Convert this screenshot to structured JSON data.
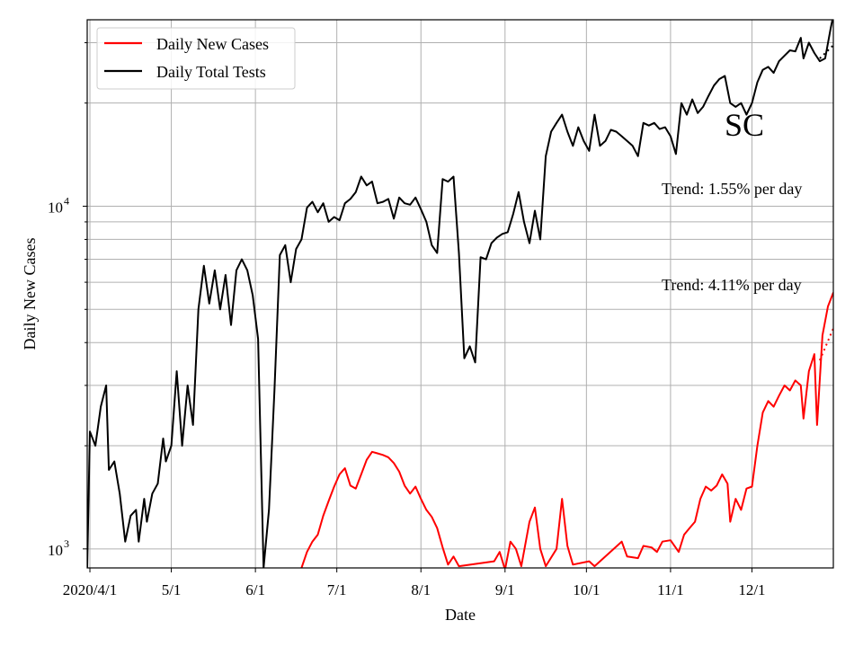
{
  "chart_data": {
    "type": "line",
    "xlabel": "Date",
    "ylabel": "Daily New Cases",
    "yscale": "log",
    "ylim": [
      880,
      35000
    ],
    "x_start": "2020-03-31",
    "x_end": "2020-12-31",
    "x_ticks": [
      {
        "date": "2020-04-01",
        "label": "2020/4/1"
      },
      {
        "date": "2020-05-01",
        "label": "5/1"
      },
      {
        "date": "2020-06-01",
        "label": "6/1"
      },
      {
        "date": "2020-07-01",
        "label": "7/1"
      },
      {
        "date": "2020-08-01",
        "label": "8/1"
      },
      {
        "date": "2020-09-01",
        "label": "9/1"
      },
      {
        "date": "2020-10-01",
        "label": "10/1"
      },
      {
        "date": "2020-11-01",
        "label": "11/1"
      },
      {
        "date": "2020-12-01",
        "label": "12/1"
      }
    ],
    "y_major_ticks": [
      {
        "value": 1000,
        "base": "10",
        "exp": "3"
      },
      {
        "value": 10000,
        "base": "10",
        "exp": "4"
      }
    ],
    "y_minor_ticks": [
      2000,
      3000,
      4000,
      5000,
      6000,
      7000,
      8000,
      9000,
      20000,
      30000
    ],
    "grid": true,
    "legend_position": "upper-left",
    "state_label": "SC",
    "annotations": [
      "Trend: 1.55% per day",
      "Trend: 4.11% per day"
    ],
    "series": [
      {
        "name": "Daily New Cases",
        "color": "#ff0000",
        "points": [
          [
            "2020-06-18",
            880
          ],
          [
            "2020-06-20",
            980
          ],
          [
            "2020-06-22",
            1050
          ],
          [
            "2020-06-24",
            1100
          ],
          [
            "2020-06-26",
            1250
          ],
          [
            "2020-06-28",
            1380
          ],
          [
            "2020-06-30",
            1520
          ],
          [
            "2020-07-02",
            1650
          ],
          [
            "2020-07-04",
            1720
          ],
          [
            "2020-07-06",
            1530
          ],
          [
            "2020-07-08",
            1500
          ],
          [
            "2020-07-10",
            1650
          ],
          [
            "2020-07-12",
            1820
          ],
          [
            "2020-07-14",
            1920
          ],
          [
            "2020-07-16",
            1900
          ],
          [
            "2020-07-18",
            1880
          ],
          [
            "2020-07-20",
            1850
          ],
          [
            "2020-07-22",
            1780
          ],
          [
            "2020-07-24",
            1680
          ],
          [
            "2020-07-26",
            1530
          ],
          [
            "2020-07-28",
            1450
          ],
          [
            "2020-07-30",
            1520
          ],
          [
            "2020-08-01",
            1400
          ],
          [
            "2020-08-03",
            1300
          ],
          [
            "2020-08-05",
            1240
          ],
          [
            "2020-08-07",
            1150
          ],
          [
            "2020-08-09",
            1010
          ],
          [
            "2020-08-11",
            900
          ],
          [
            "2020-08-13",
            950
          ],
          [
            "2020-08-15",
            890
          ],
          [
            "2020-08-28",
            920
          ],
          [
            "2020-08-30",
            980
          ],
          [
            "2020-09-01",
            870
          ],
          [
            "2020-09-03",
            1050
          ],
          [
            "2020-09-05",
            1000
          ],
          [
            "2020-09-07",
            890
          ],
          [
            "2020-09-10",
            1200
          ],
          [
            "2020-09-12",
            1320
          ],
          [
            "2020-09-14",
            1000
          ],
          [
            "2020-09-16",
            890
          ],
          [
            "2020-09-20",
            1000
          ],
          [
            "2020-09-22",
            1400
          ],
          [
            "2020-09-24",
            1020
          ],
          [
            "2020-09-26",
            900
          ],
          [
            "2020-10-02",
            920
          ],
          [
            "2020-10-04",
            890
          ],
          [
            "2020-10-14",
            1050
          ],
          [
            "2020-10-16",
            950
          ],
          [
            "2020-10-20",
            940
          ],
          [
            "2020-10-22",
            1020
          ],
          [
            "2020-10-25",
            1010
          ],
          [
            "2020-10-27",
            980
          ],
          [
            "2020-10-29",
            1050
          ],
          [
            "2020-11-01",
            1060
          ],
          [
            "2020-11-04",
            980
          ],
          [
            "2020-11-06",
            1100
          ],
          [
            "2020-11-08",
            1150
          ],
          [
            "2020-11-10",
            1200
          ],
          [
            "2020-11-12",
            1400
          ],
          [
            "2020-11-14",
            1520
          ],
          [
            "2020-11-16",
            1480
          ],
          [
            "2020-11-18",
            1530
          ],
          [
            "2020-11-20",
            1650
          ],
          [
            "2020-11-22",
            1550
          ],
          [
            "2020-11-23",
            1200
          ],
          [
            "2020-11-25",
            1400
          ],
          [
            "2020-11-27",
            1300
          ],
          [
            "2020-11-29",
            1500
          ],
          [
            "2020-12-01",
            1520
          ],
          [
            "2020-12-03",
            2000
          ],
          [
            "2020-12-05",
            2500
          ],
          [
            "2020-12-07",
            2700
          ],
          [
            "2020-12-09",
            2600
          ],
          [
            "2020-12-11",
            2800
          ],
          [
            "2020-12-13",
            3000
          ],
          [
            "2020-12-15",
            2900
          ],
          [
            "2020-12-17",
            3100
          ],
          [
            "2020-12-19",
            3000
          ],
          [
            "2020-12-20",
            2400
          ],
          [
            "2020-12-22",
            3300
          ],
          [
            "2020-12-24",
            3700
          ],
          [
            "2020-12-25",
            2300
          ],
          [
            "2020-12-27",
            4200
          ],
          [
            "2020-12-29",
            5100
          ],
          [
            "2020-12-31",
            5600
          ]
        ]
      },
      {
        "name": "Daily Total Tests",
        "color": "#000000",
        "points": [
          [
            "2020-03-31",
            880
          ],
          [
            "2020-04-01",
            2200
          ],
          [
            "2020-04-03",
            2000
          ],
          [
            "2020-04-05",
            2600
          ],
          [
            "2020-04-07",
            3000
          ],
          [
            "2020-04-08",
            1700
          ],
          [
            "2020-04-10",
            1800
          ],
          [
            "2020-04-12",
            1450
          ],
          [
            "2020-04-14",
            1050
          ],
          [
            "2020-04-16",
            1250
          ],
          [
            "2020-04-18",
            1300
          ],
          [
            "2020-04-19",
            1050
          ],
          [
            "2020-04-21",
            1400
          ],
          [
            "2020-04-22",
            1200
          ],
          [
            "2020-04-24",
            1450
          ],
          [
            "2020-04-26",
            1550
          ],
          [
            "2020-04-28",
            2100
          ],
          [
            "2020-04-29",
            1800
          ],
          [
            "2020-05-01",
            2000
          ],
          [
            "2020-05-03",
            3300
          ],
          [
            "2020-05-05",
            2000
          ],
          [
            "2020-05-07",
            3000
          ],
          [
            "2020-05-09",
            2300
          ],
          [
            "2020-05-11",
            5000
          ],
          [
            "2020-05-13",
            6700
          ],
          [
            "2020-05-15",
            5200
          ],
          [
            "2020-05-17",
            6500
          ],
          [
            "2020-05-19",
            5000
          ],
          [
            "2020-05-21",
            6300
          ],
          [
            "2020-05-23",
            4500
          ],
          [
            "2020-05-25",
            6500
          ],
          [
            "2020-05-27",
            7000
          ],
          [
            "2020-05-29",
            6500
          ],
          [
            "2020-05-31",
            5500
          ],
          [
            "2020-06-02",
            4100
          ],
          [
            "2020-06-04",
            880
          ],
          [
            "2020-06-06",
            1300
          ],
          [
            "2020-06-08",
            2900
          ],
          [
            "2020-06-10",
            7200
          ],
          [
            "2020-06-12",
            7700
          ],
          [
            "2020-06-14",
            6000
          ],
          [
            "2020-06-16",
            7500
          ],
          [
            "2020-06-18",
            8000
          ],
          [
            "2020-06-20",
            9900
          ],
          [
            "2020-06-22",
            10300
          ],
          [
            "2020-06-24",
            9600
          ],
          [
            "2020-06-26",
            10200
          ],
          [
            "2020-06-28",
            9000
          ],
          [
            "2020-06-30",
            9300
          ],
          [
            "2020-07-02",
            9100
          ],
          [
            "2020-07-04",
            10200
          ],
          [
            "2020-07-06",
            10500
          ],
          [
            "2020-07-08",
            11000
          ],
          [
            "2020-07-10",
            12200
          ],
          [
            "2020-07-12",
            11500
          ],
          [
            "2020-07-14",
            11800
          ],
          [
            "2020-07-16",
            10200
          ],
          [
            "2020-07-18",
            10300
          ],
          [
            "2020-07-20",
            10500
          ],
          [
            "2020-07-22",
            9200
          ],
          [
            "2020-07-24",
            10600
          ],
          [
            "2020-07-26",
            10200
          ],
          [
            "2020-07-28",
            10100
          ],
          [
            "2020-07-30",
            10600
          ],
          [
            "2020-08-01",
            9800
          ],
          [
            "2020-08-03",
            9000
          ],
          [
            "2020-08-05",
            7700
          ],
          [
            "2020-08-07",
            7300
          ],
          [
            "2020-08-09",
            12000
          ],
          [
            "2020-08-11",
            11800
          ],
          [
            "2020-08-13",
            12200
          ],
          [
            "2020-08-15",
            7300
          ],
          [
            "2020-08-17",
            3600
          ],
          [
            "2020-08-19",
            3900
          ],
          [
            "2020-08-21",
            3500
          ],
          [
            "2020-08-23",
            7100
          ],
          [
            "2020-08-25",
            7000
          ],
          [
            "2020-08-27",
            7800
          ],
          [
            "2020-08-29",
            8100
          ],
          [
            "2020-08-31",
            8300
          ],
          [
            "2020-09-02",
            8400
          ],
          [
            "2020-09-04",
            9500
          ],
          [
            "2020-09-06",
            11000
          ],
          [
            "2020-09-08",
            9000
          ],
          [
            "2020-09-10",
            7800
          ],
          [
            "2020-09-12",
            9700
          ],
          [
            "2020-09-14",
            8000
          ],
          [
            "2020-09-16",
            14000
          ],
          [
            "2020-09-18",
            16500
          ],
          [
            "2020-09-20",
            17500
          ],
          [
            "2020-09-22",
            18500
          ],
          [
            "2020-09-24",
            16500
          ],
          [
            "2020-09-26",
            15000
          ],
          [
            "2020-09-28",
            17000
          ],
          [
            "2020-09-30",
            15500
          ],
          [
            "2020-10-02",
            14500
          ],
          [
            "2020-10-04",
            18500
          ],
          [
            "2020-10-06",
            15000
          ],
          [
            "2020-10-08",
            15500
          ],
          [
            "2020-10-10",
            16700
          ],
          [
            "2020-10-12",
            16500
          ],
          [
            "2020-10-14",
            16000
          ],
          [
            "2020-10-16",
            15500
          ],
          [
            "2020-10-18",
            15000
          ],
          [
            "2020-10-20",
            14000
          ],
          [
            "2020-10-22",
            17500
          ],
          [
            "2020-10-24",
            17200
          ],
          [
            "2020-10-26",
            17500
          ],
          [
            "2020-10-28",
            16800
          ],
          [
            "2020-10-30",
            17000
          ],
          [
            "2020-11-01",
            16000
          ],
          [
            "2020-11-03",
            14200
          ],
          [
            "2020-11-05",
            20000
          ],
          [
            "2020-11-07",
            18500
          ],
          [
            "2020-11-09",
            20500
          ],
          [
            "2020-11-11",
            18700
          ],
          [
            "2020-11-13",
            19500
          ],
          [
            "2020-11-15",
            21000
          ],
          [
            "2020-11-17",
            22500
          ],
          [
            "2020-11-19",
            23500
          ],
          [
            "2020-11-21",
            24000
          ],
          [
            "2020-11-23",
            20000
          ],
          [
            "2020-11-25",
            19500
          ],
          [
            "2020-11-27",
            20000
          ],
          [
            "2020-11-29",
            18500
          ],
          [
            "2020-12-01",
            20000
          ],
          [
            "2020-12-03",
            23000
          ],
          [
            "2020-12-05",
            25000
          ],
          [
            "2020-12-07",
            25500
          ],
          [
            "2020-12-09",
            24500
          ],
          [
            "2020-12-11",
            26500
          ],
          [
            "2020-12-13",
            27500
          ],
          [
            "2020-12-15",
            28500
          ],
          [
            "2020-12-17",
            28300
          ],
          [
            "2020-12-19",
            31000
          ],
          [
            "2020-12-20",
            27000
          ],
          [
            "2020-12-22",
            30000
          ],
          [
            "2020-12-24",
            28000
          ],
          [
            "2020-12-26",
            26500
          ],
          [
            "2020-12-28",
            27000
          ],
          [
            "2020-12-30",
            33000
          ],
          [
            "2020-12-31",
            36000
          ]
        ]
      }
    ],
    "trend_lines": [
      {
        "color": "#000000",
        "points": [
          [
            "2020-12-26",
            27000
          ],
          [
            "2020-12-31",
            29500
          ]
        ]
      },
      {
        "color": "#ff0000",
        "points": [
          [
            "2020-12-26",
            3550
          ],
          [
            "2020-12-31",
            4400
          ]
        ]
      }
    ]
  }
}
